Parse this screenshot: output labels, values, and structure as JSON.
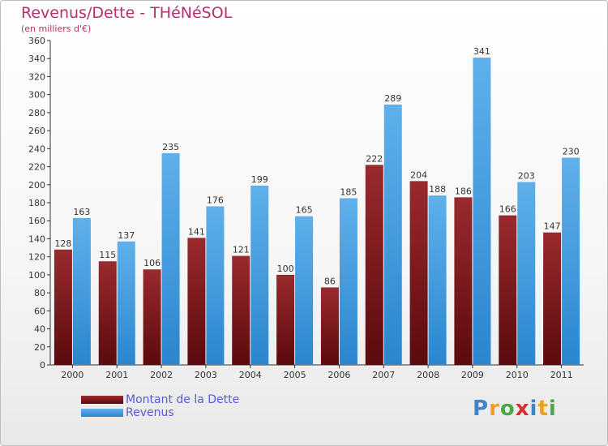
{
  "title": "Revenus/Dette - THéNéSOL",
  "subtitle": "(en milliers d'€)",
  "legend": {
    "dette_label": "Montant de la Dette",
    "revenus_label": "Revenus"
  },
  "logo": {
    "text": "Proxiti"
  },
  "colors": {
    "dette_top": "#9a2a2e",
    "dette_bottom": "#5b0a0d",
    "revenus_top": "#5fb0ea",
    "revenus_bottom": "#2b86cf",
    "title": "#b5306a",
    "legend_text": "#5a5ad6"
  },
  "chart_data": {
    "type": "bar",
    "title": "Revenus/Dette - THéNéSOL",
    "ylabel": "(en milliers d'€)",
    "xlabel": "",
    "categories": [
      "2000",
      "2001",
      "2002",
      "2003",
      "2004",
      "2005",
      "2006",
      "2007",
      "2008",
      "2009",
      "2010",
      "2011"
    ],
    "series": [
      {
        "name": "Montant de la Dette",
        "values": [
          128,
          115,
          106,
          141,
          121,
          100,
          86,
          222,
          204,
          186,
          166,
          147
        ]
      },
      {
        "name": "Revenus",
        "values": [
          163,
          137,
          235,
          176,
          199,
          165,
          185,
          289,
          188,
          341,
          203,
          230
        ]
      }
    ],
    "ylim": [
      0,
      360
    ],
    "yticks": [
      0,
      20,
      40,
      60,
      80,
      100,
      120,
      140,
      160,
      180,
      200,
      220,
      240,
      260,
      280,
      300,
      320,
      340,
      360
    ],
    "grid": false,
    "legend_position": "bottom-left"
  }
}
